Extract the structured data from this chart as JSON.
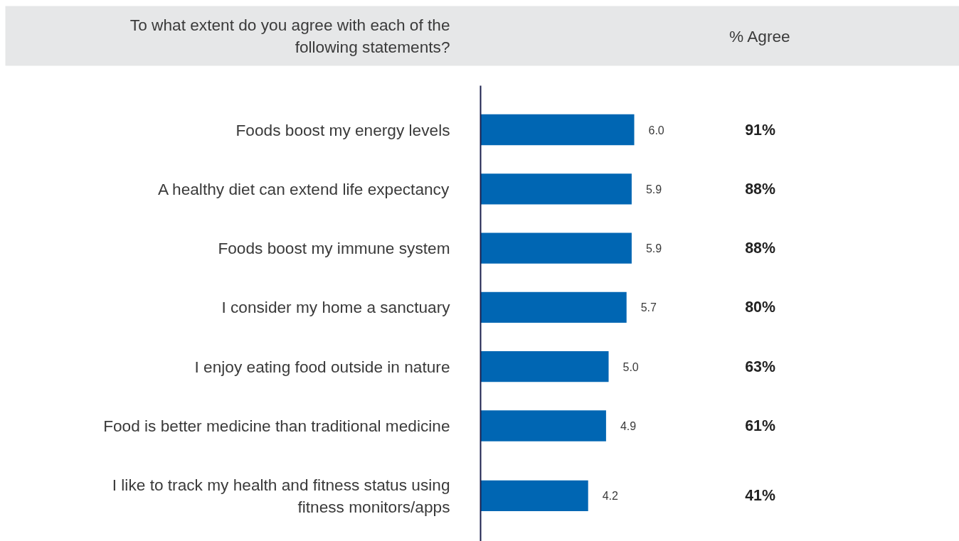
{
  "chart_data": {
    "type": "bar",
    "orientation": "horizontal",
    "title": "To what extent do you agree with each of the following statements?",
    "categories": [
      "Foods boost my energy levels",
      "A healthy diet can extend life expectancy",
      "Foods boost my immune system",
      "I consider my home a sanctuary",
      "I enjoy eating food outside in nature",
      "Food is better medicine than traditional medicine",
      "I like to track my health and fitness status using fitness monitors/apps"
    ],
    "values": [
      6.0,
      5.9,
      5.9,
      5.7,
      5.0,
      4.9,
      4.2
    ],
    "value_labels": [
      "6.0",
      "5.9",
      "5.9",
      "5.7",
      "5.0",
      "4.9",
      "4.2"
    ],
    "color": "#0066b3",
    "grid": false,
    "annotations": [
      "% Agree",
      "91%",
      "88%",
      "88%",
      "80%",
      "63%",
      "61%",
      "41%"
    ]
  }
}
